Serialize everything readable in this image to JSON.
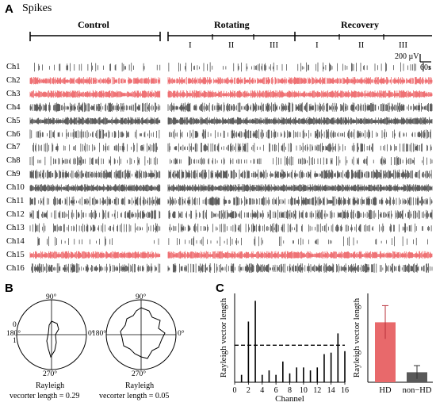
{
  "panel_a": {
    "letter": "A",
    "title": "Spikes",
    "sections": {
      "control": "Control",
      "rotating": "Rotating",
      "recovery": "Recovery"
    },
    "phases": {
      "rotating": [
        "I",
        "II",
        "III"
      ],
      "recovery": [
        "I",
        "II",
        "III"
      ]
    },
    "scale_bar": {
      "amplitude": "200 µV",
      "time": "60s"
    },
    "channels": [
      {
        "label": "Ch1",
        "color": "#1a1a1a",
        "density": 0.25
      },
      {
        "label": "Ch2",
        "color": "#e8363a",
        "density": 0.9
      },
      {
        "label": "Ch3",
        "color": "#e8363a",
        "density": 1.0
      },
      {
        "label": "Ch4",
        "color": "#1a1a1a",
        "density": 0.7
      },
      {
        "label": "Ch5",
        "color": "#1a1a1a",
        "density": 1.0
      },
      {
        "label": "Ch6",
        "color": "#1a1a1a",
        "density": 0.45
      },
      {
        "label": "Ch7",
        "color": "#1a1a1a",
        "density": 0.4
      },
      {
        "label": "Ch8",
        "color": "#1a1a1a",
        "density": 0.3
      },
      {
        "label": "Ch9",
        "color": "#1a1a1a",
        "density": 0.75
      },
      {
        "label": "Ch10",
        "color": "#1a1a1a",
        "density": 1.0
      },
      {
        "label": "Ch11",
        "color": "#1a1a1a",
        "density": 0.6
      },
      {
        "label": "Ch12",
        "color": "#1a1a1a",
        "density": 0.55
      },
      {
        "label": "Ch13",
        "color": "#1a1a1a",
        "density": 0.4
      },
      {
        "label": "Ch14",
        "color": "#1a1a1a",
        "density": 0.15
      },
      {
        "label": "Ch15",
        "color": "#e8363a",
        "density": 1.0
      },
      {
        "label": "Ch16",
        "color": "#1a1a1a",
        "density": 0.65
      }
    ]
  },
  "panel_b": {
    "letter": "B",
    "left_polar": {
      "angle_labels": {
        "top": "90°",
        "left": "180°",
        "right": "0°",
        "bottom": "270°"
      },
      "radial_labels": [
        "0",
        "1"
      ],
      "caption_line1": "Rayleigh",
      "caption_line2": "vecorter length =  0.29"
    },
    "right_polar": {
      "angle_labels": {
        "top": "90°",
        "left": "180°",
        "right": "0°",
        "bottom": "270°"
      },
      "caption_line1": "Rayleigh",
      "caption_line2": "vecorter length = 0.05"
    }
  },
  "panel_c": {
    "letter": "C",
    "chart_data": [
      {
        "type": "bar",
        "xlabel": "Channel",
        "ylabel": "Rayleigh vector length",
        "x": [
          1,
          2,
          3,
          4,
          5,
          6,
          7,
          8,
          9,
          10,
          11,
          12,
          13,
          14,
          15,
          16
        ],
        "values": [
          0.05,
          0.41,
          0.55,
          0.05,
          0.08,
          0.05,
          0.14,
          0.06,
          0.1,
          0.1,
          0.08,
          0.1,
          0.19,
          0.2,
          0.33,
          0.21
        ],
        "xticks": [
          "0",
          "2",
          "4",
          "6",
          "8",
          "10",
          "12",
          "14",
          "16"
        ],
        "threshold": 0.25,
        "ylim": [
          0,
          0.6
        ],
        "color": "#000000"
      },
      {
        "type": "bar",
        "ylabel": "Rayleigh vector length",
        "categories": [
          "HD",
          "non−HD"
        ],
        "values": [
          0.54,
          0.09
        ],
        "errors": [
          0.15,
          0.06
        ],
        "colors": [
          "#e8696b",
          "#595959"
        ],
        "ylim": [
          0,
          0.8
        ]
      }
    ]
  }
}
